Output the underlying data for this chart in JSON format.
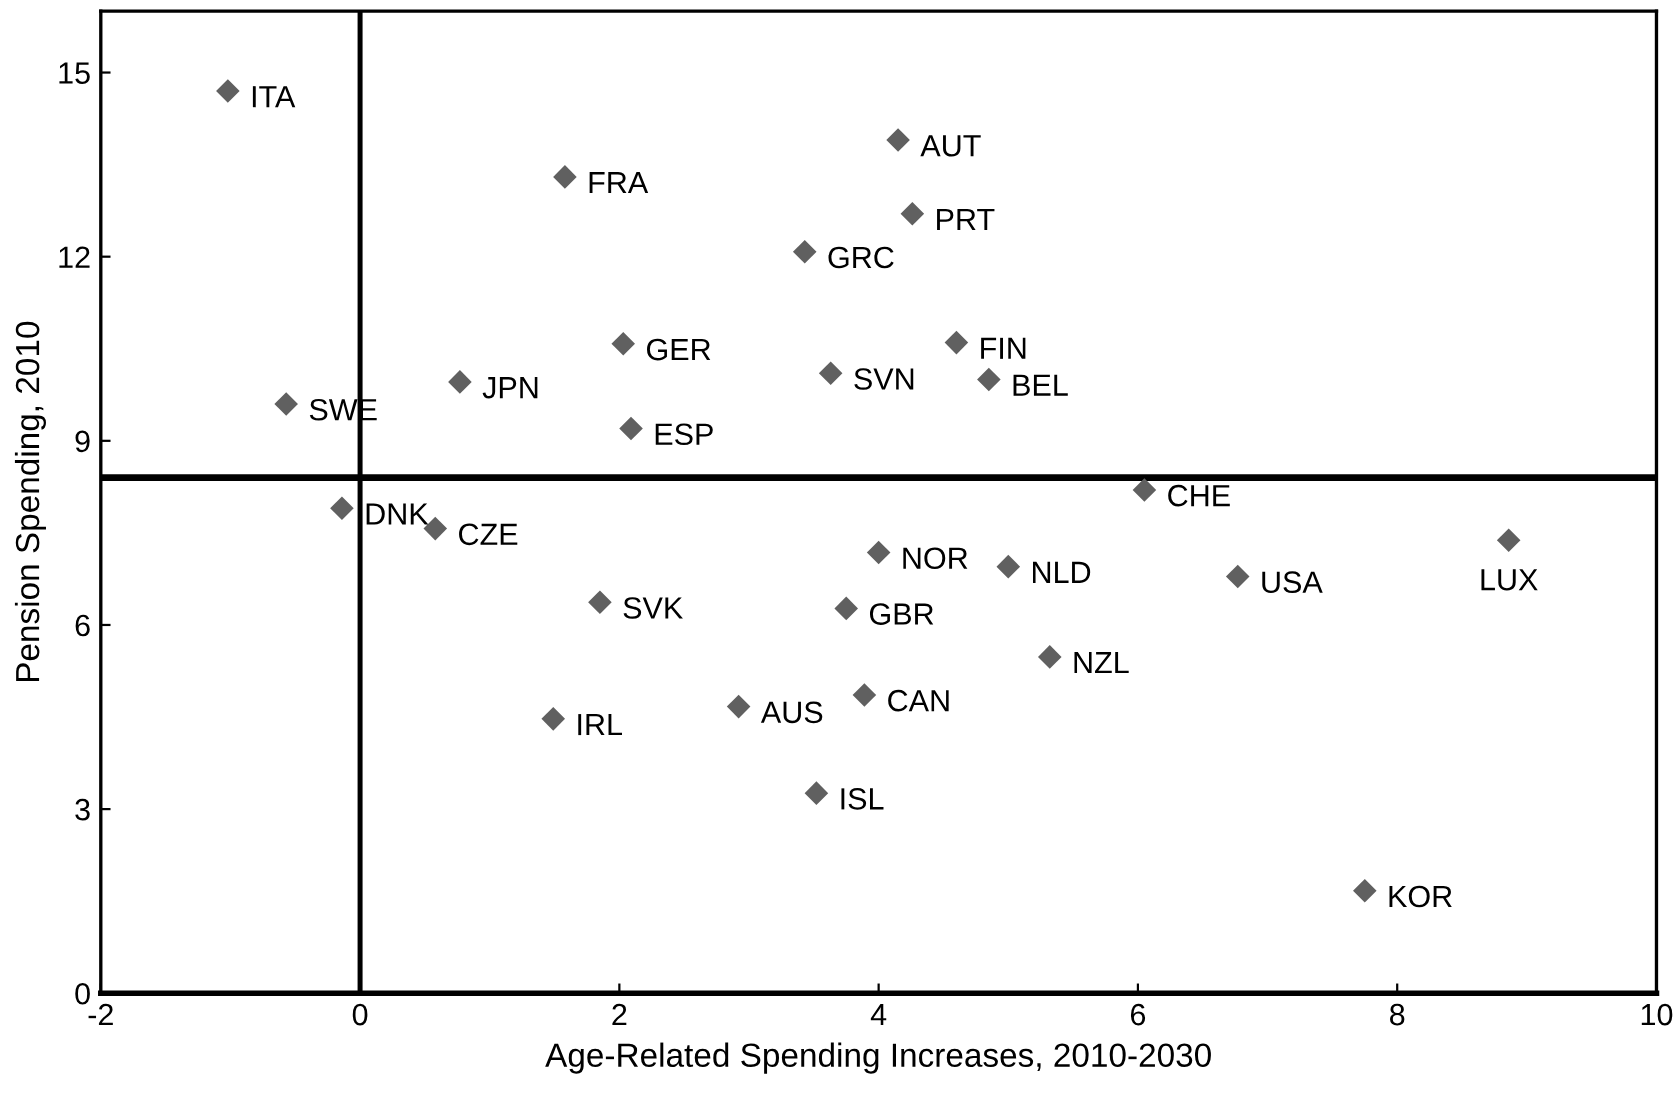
{
  "chart_data": {
    "type": "scatter",
    "xlabel": "Age-Related Spending Increases, 2010-2030",
    "ylabel": "Pension Spending, 2010",
    "xlim": [
      -2,
      10
    ],
    "xticks": [
      -2,
      0,
      2,
      4,
      6,
      8,
      10
    ],
    "ylim": [
      0,
      16
    ],
    "yticks": [
      0,
      3,
      6,
      9,
      12,
      15
    ],
    "marker": "diamond",
    "grid": false,
    "series": [
      {
        "color": "#606060",
        "x": [
          -1.02,
          1.58,
          0.77,
          -0.57,
          2.03,
          2.09,
          -0.14,
          0.58,
          3.43,
          4.15,
          4.26,
          3.63,
          4.6,
          4.85,
          6.05,
          8.86,
          4.0,
          5.0,
          6.77,
          3.75,
          5.32,
          3.89,
          3.52,
          7.75,
          1.85,
          1.49,
          2.92
        ],
        "values": [
          14.7,
          13.3,
          9.96,
          9.6,
          10.58,
          9.2,
          7.9,
          7.57,
          12.08,
          13.9,
          12.7,
          10.1,
          10.6,
          10.0,
          8.2,
          7.38,
          7.18,
          6.95,
          6.79,
          6.27,
          5.48,
          4.86,
          3.26,
          1.67,
          6.37,
          4.47,
          4.67
        ]
      }
    ],
    "ref_lines": [
      {
        "axis": "y",
        "value": 8.4,
        "color": "#000000"
      },
      {
        "axis": "x",
        "value": 0,
        "color": "#000000"
      }
    ],
    "annotations": [
      {
        "text": "ITA",
        "x": -1.02,
        "y": 14.7
      },
      {
        "text": "FRA",
        "x": 1.58,
        "y": 13.3
      },
      {
        "text": "JPN",
        "x": 0.77,
        "y": 9.96
      },
      {
        "text": "SWE",
        "x": -0.57,
        "y": 9.6
      },
      {
        "text": "GER",
        "x": 2.03,
        "y": 10.58
      },
      {
        "text": "ESP",
        "x": 2.09,
        "y": 9.2
      },
      {
        "text": "DNK",
        "x": -0.14,
        "y": 7.9
      },
      {
        "text": "CZE",
        "x": 0.58,
        "y": 7.57
      },
      {
        "text": "GRC",
        "x": 3.43,
        "y": 12.08
      },
      {
        "text": "AUT",
        "x": 4.15,
        "y": 13.9
      },
      {
        "text": "PRT",
        "x": 4.26,
        "y": 12.7
      },
      {
        "text": "SVN",
        "x": 3.63,
        "y": 10.1
      },
      {
        "text": "FIN",
        "x": 4.6,
        "y": 10.6
      },
      {
        "text": "BEL",
        "x": 4.85,
        "y": 10.0
      },
      {
        "text": "CHE",
        "x": 6.05,
        "y": 8.2
      },
      {
        "text": "LUX",
        "x": 8.86,
        "y": 7.38
      },
      {
        "text": "NOR",
        "x": 4.0,
        "y": 7.18
      },
      {
        "text": "NLD",
        "x": 5.0,
        "y": 6.95
      },
      {
        "text": "USA",
        "x": 6.77,
        "y": 6.79
      },
      {
        "text": "GBR",
        "x": 3.75,
        "y": 6.27
      },
      {
        "text": "NZL",
        "x": 5.32,
        "y": 5.48
      },
      {
        "text": "CAN",
        "x": 3.89,
        "y": 4.86
      },
      {
        "text": "ISL",
        "x": 3.52,
        "y": 3.26
      },
      {
        "text": "KOR",
        "x": 7.75,
        "y": 1.67
      },
      {
        "text": "SVK",
        "x": 1.85,
        "y": 6.37
      },
      {
        "text": "IRL",
        "x": 1.49,
        "y": 4.47
      },
      {
        "text": "AUS",
        "x": 2.92,
        "y": 4.67
      }
    ]
  }
}
